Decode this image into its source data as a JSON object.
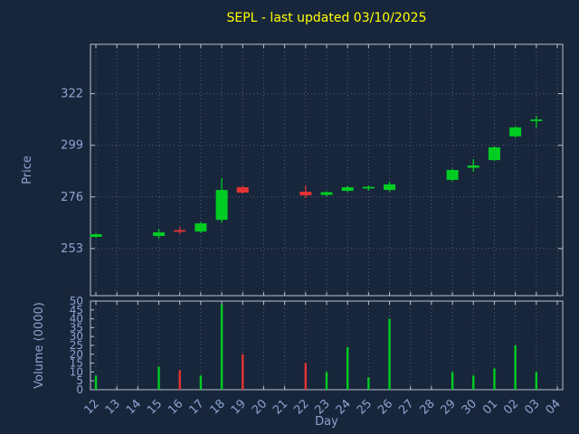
{
  "colors": {
    "background": "#18263c",
    "title": "#ffff00",
    "axis_text": "#8da3cf",
    "grid": "#8a97ad",
    "frame": "#b9c2d0",
    "up": "#00cc22",
    "down": "#e53333"
  },
  "chart_data": {
    "type": "candlestick",
    "title": "SEPL - last updated 03/10/2025",
    "xlabel": "Day",
    "ylabel_price": "Price",
    "ylabel_volume": "Volume (0000)",
    "grid": true,
    "legend": "none",
    "price_ticks": [
      253,
      276,
      299,
      322
    ],
    "price_ylim": [
      232,
      344
    ],
    "volume_ticks": [
      0,
      5,
      10,
      15,
      20,
      25,
      30,
      35,
      40,
      45,
      50
    ],
    "volume_ylim": [
      0,
      50
    ],
    "days": [
      "12",
      "13",
      "14",
      "15",
      "16",
      "17",
      "18",
      "19",
      "20",
      "21",
      "22",
      "23",
      "24",
      "25",
      "26",
      "27",
      "28",
      "29",
      "30",
      "01",
      "02",
      "03",
      "04"
    ],
    "candles": [
      {
        "day": "12",
        "open": 258.2,
        "high": 259.6,
        "low": 257.8,
        "close": 259.4,
        "volume": 8
      },
      {
        "day": "15",
        "open": 258.6,
        "high": 261.8,
        "low": 257.4,
        "close": 260.2,
        "volume": 13
      },
      {
        "day": "16",
        "open": 261.2,
        "high": 262.6,
        "low": 259.4,
        "close": 260.6,
        "volume": 11
      },
      {
        "day": "17",
        "open": 260.6,
        "high": 264.8,
        "low": 260.0,
        "close": 264.2,
        "volume": 8
      },
      {
        "day": "18",
        "open": 265.8,
        "high": 284.5,
        "low": 264.5,
        "close": 279.1,
        "volume": 48
      },
      {
        "day": "19",
        "open": 280.3,
        "high": 281.0,
        "low": 277.5,
        "close": 277.9,
        "volume": 20
      },
      {
        "day": "22",
        "open": 278.3,
        "high": 281.0,
        "low": 275.5,
        "close": 276.7,
        "volume": 15
      },
      {
        "day": "23",
        "open": 276.9,
        "high": 278.5,
        "low": 276.3,
        "close": 278.1,
        "volume": 10
      },
      {
        "day": "24",
        "open": 278.7,
        "high": 281.0,
        "low": 278.3,
        "close": 280.3,
        "volume": 24
      },
      {
        "day": "25",
        "open": 279.9,
        "high": 281.1,
        "low": 278.7,
        "close": 280.5,
        "volume": 7
      },
      {
        "day": "26",
        "open": 279.1,
        "high": 282.8,
        "low": 278.3,
        "close": 281.6,
        "volume": 40
      },
      {
        "day": "29",
        "open": 283.6,
        "high": 288.5,
        "low": 283.0,
        "close": 288.0,
        "volume": 10
      },
      {
        "day": "30",
        "open": 289.0,
        "high": 292.8,
        "low": 287.2,
        "close": 290.0,
        "volume": 8
      },
      {
        "day": "01",
        "open": 292.4,
        "high": 298.5,
        "low": 292.0,
        "close": 298.1,
        "volume": 12
      },
      {
        "day": "02",
        "open": 303.0,
        "high": 307.5,
        "low": 302.5,
        "close": 307.0,
        "volume": 25
      },
      {
        "day": "03",
        "open": 310.0,
        "high": 312.2,
        "low": 306.9,
        "close": 310.5,
        "volume": 10
      }
    ]
  }
}
